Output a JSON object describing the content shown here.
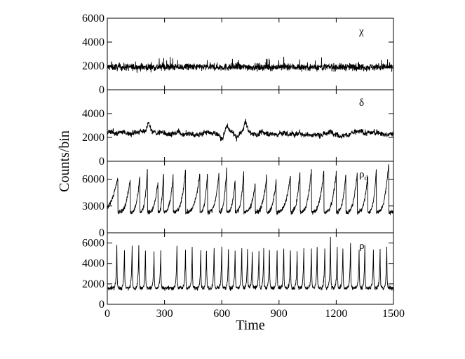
{
  "chart_data": {
    "type": "line",
    "xlabel": "Time",
    "ylabel": "Counts/bin",
    "xlim": [
      0,
      1500
    ],
    "xticks": [
      0,
      300,
      600,
      900,
      1200,
      1500
    ],
    "x_step": 1,
    "line_color": "#000000",
    "panels": [
      {
        "label": "χ",
        "ylim": [
          0,
          6000
        ],
        "yticks": [
          0,
          2000,
          4000,
          6000
        ],
        "pattern": "noise",
        "baseline": 1900,
        "noise": 300,
        "spikes": 2800
      },
      {
        "label": "δ",
        "ylim": [
          0,
          6000
        ],
        "yticks": [
          0,
          2000,
          4000
        ],
        "pattern": "wandering",
        "baseline": 2350,
        "noise": 220,
        "features": [
          {
            "x": 215,
            "value": 3100
          },
          {
            "x": 600,
            "value": 1800
          },
          {
            "x": 625,
            "value": 2900
          },
          {
            "x": 680,
            "value": 1900
          },
          {
            "x": 725,
            "value": 3200
          }
        ]
      },
      {
        "label": "ρ",
        "label_sub": "d",
        "ylim": [
          0,
          8000
        ],
        "yticks": [
          0,
          3000,
          6000
        ],
        "pattern": "sawtooth",
        "baseline": 2300,
        "noise": 250,
        "peak_times": [
          55,
          120,
          170,
          210,
          265,
          295,
          345,
          410,
          485,
          525,
          585,
          625,
          670,
          715,
          775,
          835,
          885,
          960,
          1010,
          1070,
          1135,
          1200,
          1250,
          1310,
          1365,
          1410,
          1475
        ],
        "peak_values": [
          6300,
          6200,
          6500,
          7300,
          5800,
          7100,
          6600,
          7200,
          6800,
          7000,
          6800,
          7300,
          6000,
          7000,
          5600,
          6500,
          6100,
          6600,
          7100,
          7400,
          7200,
          6900,
          6700,
          7000,
          6600,
          7200,
          8000
        ]
      },
      {
        "label": "ρ",
        "ylim": [
          0,
          7000
        ],
        "yticks": [
          0,
          2000,
          4000,
          6000
        ],
        "pattern": "spikes",
        "baseline": 1600,
        "noise": 200,
        "peak_times": [
          50,
          90,
          130,
          165,
          200,
          245,
          280,
          365,
          410,
          445,
          490,
          520,
          560,
          600,
          635,
          670,
          705,
          735,
          760,
          795,
          820,
          850,
          890,
          925,
          960,
          995,
          1030,
          1070,
          1100,
          1140,
          1170,
          1205,
          1235,
          1275,
          1320,
          1350,
          1395,
          1430,
          1465
        ],
        "peak_values": [
          5600,
          5300,
          5600,
          5600,
          5400,
          5200,
          5200,
          5800,
          5400,
          5600,
          5300,
          5400,
          5700,
          5700,
          5400,
          5400,
          5400,
          5400,
          5200,
          5400,
          5400,
          5400,
          5200,
          5600,
          5400,
          5200,
          5500,
          5500,
          5700,
          5500,
          6700,
          5600,
          5600,
          6000,
          5500,
          5800,
          5600,
          5500,
          5600
        ]
      }
    ]
  }
}
